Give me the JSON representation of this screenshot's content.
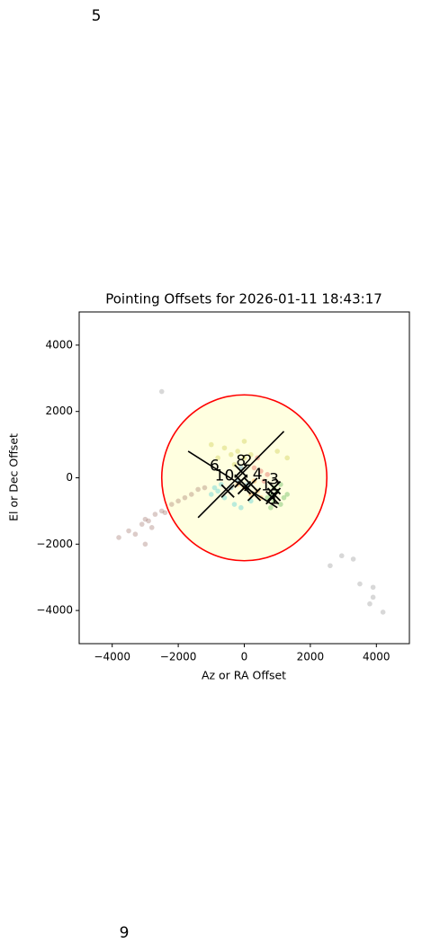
{
  "corner_texts": [
    "5",
    "9"
  ],
  "chart_data": {
    "type": "scatter",
    "title": "Pointing Offsets for 2026-01-11 18:43:17",
    "xlabel": "Az or RA Offset",
    "ylabel": "El or Dec Offset",
    "xlim": [
      -5000,
      5000
    ],
    "ylim": [
      -5000,
      5000
    ],
    "xticks": [
      {
        "value": -4000,
        "label": "−4000"
      },
      {
        "value": -2000,
        "label": "−2000"
      },
      0,
      2000,
      4000
    ],
    "yticks": [
      {
        "value": -4000,
        "label": "−4000"
      },
      {
        "value": -2000,
        "label": "−2000"
      },
      0,
      2000,
      4000
    ],
    "circle": {
      "center": [
        0,
        0
      ],
      "radius": 2500,
      "edgecolor": "#ff0000",
      "facecolor": "#ffffe0"
    },
    "series": [
      {
        "color": "#8c564b",
        "x": [
          -3800,
          -3500,
          -3300,
          -3100,
          -3000,
          -2900,
          -2700,
          -2500,
          -2400,
          -2200,
          -2000,
          -1800,
          -1600,
          -1400,
          -1200,
          -3000,
          -2800
        ],
        "y": [
          -1800,
          -1600,
          -1700,
          -1400,
          -1250,
          -1300,
          -1100,
          -1000,
          -1050,
          -800,
          -700,
          -600,
          -500,
          -350,
          -300,
          -2000,
          -1500
        ]
      },
      {
        "color": "#7f7f7f",
        "x": [
          2600,
          2950,
          3300,
          3500,
          3900,
          3900,
          3800,
          4200,
          -2500
        ],
        "y": [
          -2650,
          -2350,
          -2450,
          -3200,
          -3300,
          -3600,
          -3800,
          -4050,
          2600
        ]
      },
      {
        "color": "#17becf",
        "x": [
          -1000,
          -800,
          -600,
          -700,
          -300,
          -100,
          200,
          -900
        ],
        "y": [
          -500,
          -400,
          -600,
          -200,
          -800,
          -900,
          -700,
          -300
        ]
      },
      {
        "color": "#2ca02c",
        "x": [
          700,
          800,
          900,
          1000,
          1100,
          1200,
          900,
          1300,
          800,
          1100
        ],
        "y": [
          -600,
          -500,
          -700,
          -400,
          -800,
          -600,
          -300,
          -500,
          -900,
          -200
        ]
      },
      {
        "color": "#ff7f0e",
        "x": [
          0,
          200,
          400,
          -200,
          300,
          500
        ],
        "y": [
          -300,
          -500,
          -400,
          -200,
          -100,
          -600
        ]
      },
      {
        "color": "#d62728",
        "x": [
          300,
          500,
          700,
          400,
          600
        ],
        "y": [
          300,
          200,
          100,
          600,
          -100
        ]
      },
      {
        "color": "#bcbd22",
        "x": [
          -1000,
          -600,
          -400,
          -200,
          0,
          200,
          -300,
          0,
          -800,
          1300,
          1000
        ],
        "y": [
          1000,
          900,
          700,
          800,
          600,
          700,
          400,
          1100,
          600,
          600,
          800
        ]
      },
      {
        "color": "#1f77b4",
        "x": [
          -200,
          -400,
          100,
          -100
        ],
        "y": [
          -100,
          -300,
          -200,
          300
        ]
      }
    ],
    "lines": [
      {
        "color": "#000000",
        "x": [
          -1400,
          1200
        ],
        "y": [
          -1200,
          1400
        ]
      },
      {
        "color": "#000000",
        "x": [
          -1700,
          1000
        ],
        "y": [
          800,
          -900
        ]
      }
    ],
    "markers": {
      "color": "#000000",
      "x": [
        -500,
        0,
        300,
        900,
        850,
        -100,
        -100,
        200,
        900
      ],
      "y": [
        -400,
        -300,
        -500,
        -500,
        -600,
        200,
        -100,
        -200,
        -300
      ]
    },
    "annotations": [
      {
        "text": "6",
        "x": -900,
        "y": 350
      },
      {
        "text": "8",
        "x": -100,
        "y": 500
      },
      {
        "text": "2",
        "x": 100,
        "y": 500
      },
      {
        "text": "10",
        "x": -600,
        "y": 50
      },
      {
        "text": "4",
        "x": 400,
        "y": 100
      },
      {
        "text": "3",
        "x": 900,
        "y": -50
      },
      {
        "text": "12",
        "x": 800,
        "y": -250
      },
      {
        "text": "1",
        "x": 900,
        "y": -650
      }
    ]
  }
}
